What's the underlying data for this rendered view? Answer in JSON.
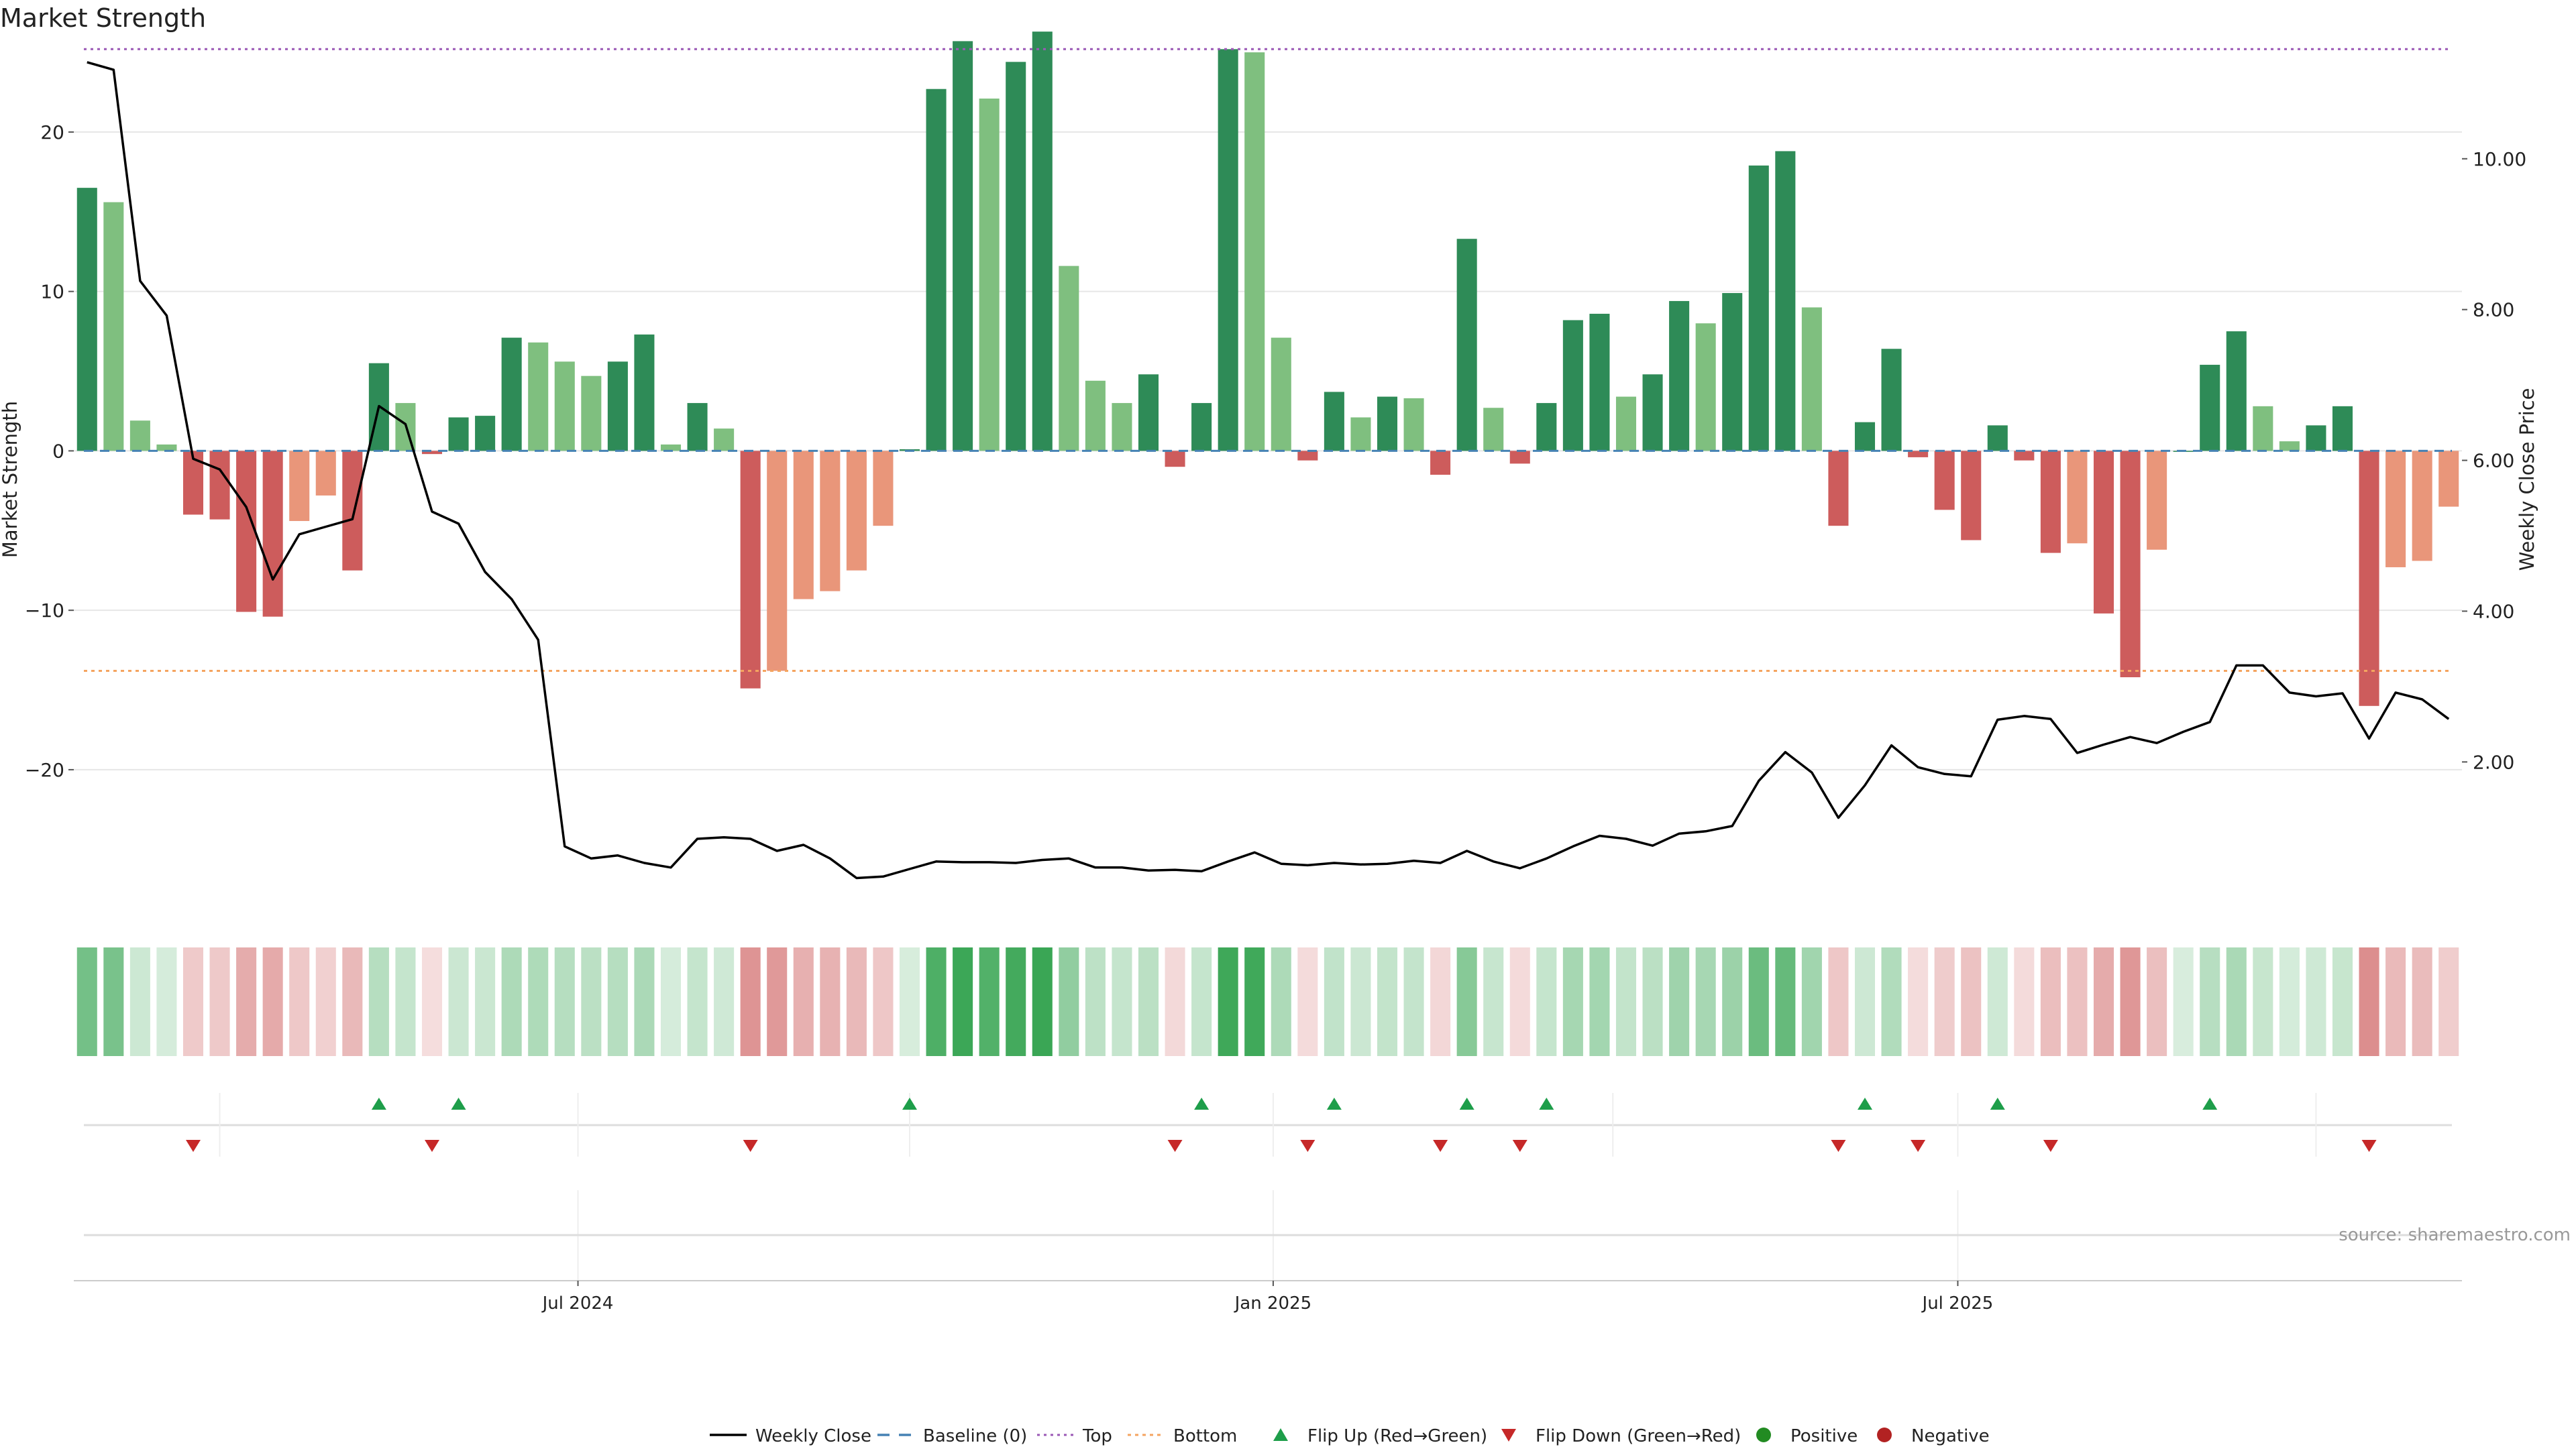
{
  "chart_data": {
    "type": "bar",
    "title": "Market Strength",
    "ylabel": "Market Strength",
    "y2label": "Weekly Close Price",
    "ylim": [
      -28.5,
      26.6
    ],
    "y2lim": [
      0.1,
      11.75
    ],
    "yticks": [
      20,
      10,
      0,
      -10,
      -20
    ],
    "ytick_labels": [
      "20",
      "10",
      "0",
      "−10",
      "−20"
    ],
    "y2ticks": [
      10,
      8,
      6,
      4,
      2
    ],
    "y2tick_labels": [
      "10.00",
      "8.00",
      "6.00",
      "4.00",
      "2.00"
    ],
    "x_labels": [
      {
        "label": "Jul 2024",
        "week": 19
      },
      {
        "label": "Jan 2025",
        "week": 45.2
      },
      {
        "label": "Jul 2025",
        "week": 71
      }
    ],
    "reference_lines": {
      "top": 25.2,
      "bottom": -13.8,
      "baseline": 0
    },
    "strength": [
      16.5,
      15.6,
      1.9,
      0.4,
      -4.0,
      -4.3,
      -10.1,
      -10.4,
      -4.4,
      -2.8,
      -7.5,
      5.5,
      3.0,
      -0.2,
      2.1,
      2.2,
      7.1,
      6.8,
      5.6,
      4.7,
      5.6,
      7.3,
      0.4,
      3.0,
      1.4,
      -14.9,
      -13.8,
      -9.3,
      -8.8,
      -7.5,
      -4.7,
      0.1,
      22.7,
      25.7,
      22.1,
      24.4,
      26.3,
      11.6,
      4.4,
      3.0,
      4.8,
      -1.0,
      3.0,
      25.2,
      25.0,
      7.1,
      -0.6,
      3.7,
      2.1,
      3.4,
      3.3,
      -1.5,
      13.3,
      2.7,
      -0.8,
      3.0,
      8.2,
      8.6,
      3.4,
      4.8,
      9.4,
      8.0,
      9.9,
      17.9,
      18.8,
      9.0,
      -4.7,
      1.8,
      6.4,
      -0.4,
      -3.7,
      -5.6,
      1.6,
      -0.6,
      -6.4,
      -5.8,
      -10.2,
      -14.2,
      -6.2,
      0.0,
      5.4,
      7.5,
      2.8,
      0.6,
      1.6,
      2.8,
      -16.0,
      -7.3,
      -6.9,
      -3.5
    ],
    "weekly_close": [
      11.28,
      11.18,
      8.38,
      7.92,
      6.02,
      5.88,
      5.38,
      4.42,
      5.02,
      5.12,
      5.22,
      6.72,
      6.48,
      5.32,
      5.16,
      4.52,
      4.16,
      3.62,
      0.88,
      0.72,
      0.76,
      0.66,
      0.6,
      0.98,
      1.0,
      0.98,
      0.82,
      0.9,
      0.72,
      0.46,
      0.48,
      0.58,
      0.68,
      0.67,
      0.67,
      0.66,
      0.7,
      0.72,
      0.6,
      0.6,
      0.56,
      0.57,
      0.55,
      0.68,
      0.8,
      0.65,
      0.63,
      0.66,
      0.64,
      0.65,
      0.69,
      0.66,
      0.82,
      0.68,
      0.59,
      0.72,
      0.88,
      1.02,
      0.98,
      0.89,
      1.05,
      1.08,
      1.15,
      1.75,
      2.13,
      1.86,
      1.26,
      1.69,
      2.22,
      1.93,
      1.84,
      1.81,
      2.56,
      2.61,
      2.57,
      2.12,
      2.23,
      2.33,
      2.25,
      2.4,
      2.53,
      3.28,
      3.28,
      2.92,
      2.87,
      2.91,
      2.31,
      2.92,
      2.83,
      2.57
    ],
    "flip_up_weeks": [
      11,
      14,
      31,
      42,
      47,
      52,
      55,
      67,
      72,
      80
    ],
    "flip_down_weeks": [
      4,
      13,
      25,
      41,
      46,
      51,
      54,
      66,
      69,
      74,
      86
    ],
    "legend": [
      {
        "key": "line",
        "label": "Weekly Close"
      },
      {
        "key": "baseline",
        "label": "Baseline (0)"
      },
      {
        "key": "top",
        "label": "Top"
      },
      {
        "key": "bottom",
        "label": "Bottom"
      },
      {
        "key": "flipup",
        "label": "Flip Up (Red→Green)"
      },
      {
        "key": "flipdown",
        "label": "Flip Down (Green→Red)"
      },
      {
        "key": "positive",
        "label": "Positive"
      },
      {
        "key": "negative",
        "label": "Negative"
      }
    ],
    "legend_position": "bottom-center",
    "source": "source: sharemaestro.com",
    "colors": {
      "pos_strong": "#2e8b57",
      "pos_light": "#7fbf7f",
      "neg_strong": "#cd5c5c",
      "neg_light": "#e9967a",
      "line": "#000000",
      "baseline": "#4682b4",
      "top": "#9b59b6",
      "bottom": "#f4a460",
      "flip_up": "#1e9e4a",
      "flip_down": "#c62828",
      "positive": "#228b22",
      "negative": "#b22222",
      "grid": "#e6e6e6",
      "text": "#222222",
      "source_text": "#999999"
    }
  }
}
